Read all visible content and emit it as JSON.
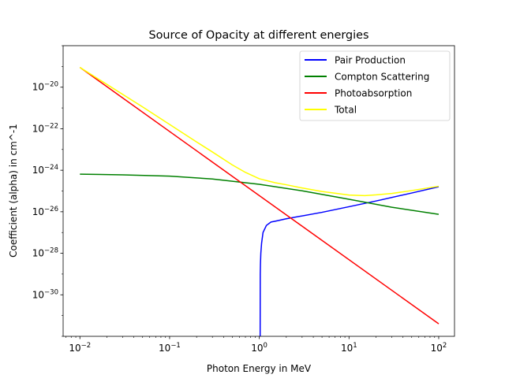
{
  "chart_data": {
    "type": "line",
    "title": "Source of Opacity at different energies",
    "xlabel": "Photon Energy in MeV",
    "ylabel": "Coefficient (alpha) in cm^-1",
    "xscale": "log",
    "yscale": "log",
    "xlim": [
      0.0065,
      150
    ],
    "ylim": [
      1e-32,
      1e-18
    ],
    "x_ticks": [
      {
        "value": 0.01,
        "base": "10",
        "exp": "−2"
      },
      {
        "value": 0.1,
        "base": "10",
        "exp": "−1"
      },
      {
        "value": 1,
        "base": "10",
        "exp": "0"
      },
      {
        "value": 10,
        "base": "10",
        "exp": "1"
      },
      {
        "value": 100,
        "base": "10",
        "exp": "2"
      }
    ],
    "y_ticks": [
      {
        "value": 1e-30,
        "base": "10",
        "exp": "−30"
      },
      {
        "value": 1e-28,
        "base": "10",
        "exp": "−28"
      },
      {
        "value": 1e-26,
        "base": "10",
        "exp": "−26"
      },
      {
        "value": 1e-24,
        "base": "10",
        "exp": "−24"
      },
      {
        "value": 1e-22,
        "base": "10",
        "exp": "−22"
      },
      {
        "value": 1e-20,
        "base": "10",
        "exp": "−20"
      }
    ],
    "grid": false,
    "legend_position": "top-right",
    "series": [
      {
        "name": "Pair Production",
        "color": "#0000ff",
        "points": [
          [
            1.022,
            1e-32
          ],
          [
            1.025,
            1e-29
          ],
          [
            1.03,
            3e-29
          ],
          [
            1.04,
            1e-28
          ],
          [
            1.06,
            3e-28
          ],
          [
            1.1,
            1e-27
          ],
          [
            1.2,
            2.2e-27
          ],
          [
            1.35,
            3.2e-27
          ],
          [
            1.5,
            3.5e-27
          ],
          [
            2,
            4.6e-27
          ],
          [
            5,
            9.4e-27
          ],
          [
            10,
            1.75e-26
          ],
          [
            20,
            3.3e-26
          ],
          [
            50,
            8e-26
          ],
          [
            100,
            1.6e-25
          ]
        ]
      },
      {
        "name": "Compton Scattering",
        "color": "#008000",
        "points": [
          [
            0.01,
            6.5e-25
          ],
          [
            0.03,
            6e-25
          ],
          [
            0.1,
            5.2e-25
          ],
          [
            0.3,
            3.8e-25
          ],
          [
            1,
            2.1e-25
          ],
          [
            3,
            1.02e-25
          ],
          [
            10,
            4e-26
          ],
          [
            30,
            1.65e-26
          ],
          [
            100,
            7.5e-27
          ]
        ]
      },
      {
        "name": "Photoabsorption",
        "color": "#ff0000",
        "points": [
          [
            0.01,
            9e-20
          ],
          [
            100,
            4e-32
          ]
        ]
      },
      {
        "name": "Total",
        "color": "#ffff00",
        "points": [
          [
            0.01,
            9e-20
          ],
          [
            0.05,
            1.12e-21
          ],
          [
            0.1,
            1.6e-22
          ],
          [
            0.2,
            2.3e-23
          ],
          [
            0.3,
            7.6e-24
          ],
          [
            0.5,
            1.8e-24
          ],
          [
            0.7,
            7.9e-25
          ],
          [
            1,
            3.9e-25
          ],
          [
            1.5,
            2.5e-25
          ],
          [
            2,
            2e-25
          ],
          [
            3,
            1.4e-25
          ],
          [
            5,
            9.5e-26
          ],
          [
            10,
            6.4e-26
          ],
          [
            15,
            6e-26
          ],
          [
            20,
            6.5e-26
          ],
          [
            30,
            7.6e-26
          ],
          [
            50,
            1.05e-25
          ],
          [
            100,
            1.7e-25
          ]
        ]
      }
    ]
  }
}
